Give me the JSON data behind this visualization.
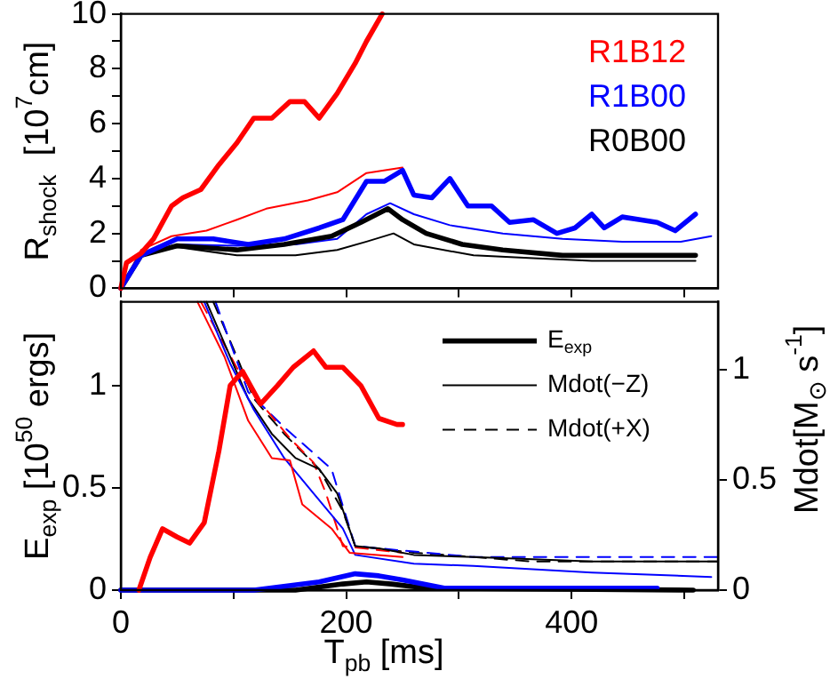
{
  "chart_data": [
    {
      "type": "line",
      "ylabel": "R$_{shock}$  [10$^{7}$cm]",
      "xlim": [
        0,
        530
      ],
      "ylim": [
        0,
        10
      ],
      "tick_labels": "y",
      "legend": "top right",
      "grid": false,
      "xticks": [
        0,
        {
          "value": 100,
          "label": null
        },
        {
          "value": 200,
          "label": null
        },
        {
          "value": 300,
          "label": null
        },
        {
          "value": 400,
          "label": null
        },
        {
          "value": 500,
          "label": null
        }
      ],
      "yticks": [
        0,
        {
          "value": 1,
          "label": null
        },
        2,
        {
          "value": 3,
          "label": null
        },
        4,
        {
          "value": 5,
          "label": null
        },
        6,
        {
          "value": 7,
          "label": null
        },
        8,
        {
          "value": 9,
          "label": null
        },
        10
      ],
      "series": [
        {
          "name": "R1B12",
          "color": "#ff0000",
          "x": [
            0,
            5,
            18,
            29,
            45,
            55,
            71,
            87,
            103,
            118,
            134,
            150,
            163,
            176,
            192,
            208,
            218,
            232
          ],
          "values": [
            0,
            0.93,
            1.28,
            1.8,
            3.0,
            3.3,
            3.6,
            4.5,
            5.3,
            6.2,
            6.2,
            6.8,
            6.8,
            6.2,
            7.1,
            8.2,
            9.0,
            10.0
          ]
        },
        {
          "name": "R1B00",
          "color": "#0000ff",
          "x": [
            0,
            18,
            50,
            82,
            113,
            145,
            176,
            197,
            218,
            234,
            250,
            260,
            276,
            292,
            308,
            329,
            345,
            366,
            387,
            403,
            418,
            429,
            445,
            461,
            476,
            492,
            510
          ],
          "values": [
            0,
            1.2,
            1.8,
            1.8,
            1.6,
            1.8,
            2.2,
            2.5,
            3.9,
            3.9,
            4.3,
            3.4,
            3.3,
            4.0,
            3.0,
            3.0,
            2.4,
            2.5,
            2.0,
            2.2,
            2.7,
            2.2,
            2.6,
            2.5,
            2.4,
            2.1,
            2.7
          ]
        },
        {
          "name": "R0B00",
          "color": "#000000",
          "x": [
            0,
            18,
            50,
            103,
            145,
            187,
            213,
            237,
            250,
            271,
            303,
            339,
            392,
            445,
            510
          ],
          "values": [
            0,
            1.2,
            1.55,
            1.4,
            1.6,
            1.9,
            2.4,
            2.9,
            2.5,
            2.0,
            1.6,
            1.4,
            1.2,
            1.2,
            1.2
          ]
        },
        {
          "color": "#ff0000",
          "x": [
            0,
            18,
            45,
            76,
            103,
            129,
            166,
            192,
            218,
            250
          ],
          "values": [
            0,
            1.4,
            1.9,
            2.1,
            2.5,
            2.9,
            3.2,
            3.5,
            4.2,
            4.4
          ]
        },
        {
          "color": "#0000ff",
          "x": [
            0,
            18,
            50,
            103,
            155,
            192,
            218,
            239,
            260,
            292,
            339,
            392,
            445,
            497,
            524
          ],
          "values": [
            0,
            1.2,
            1.6,
            1.55,
            1.6,
            1.8,
            2.7,
            3.1,
            2.7,
            2.3,
            2.0,
            1.8,
            1.7,
            1.7,
            1.9
          ]
        },
        {
          "color": "#000000",
          "x": [
            0,
            18,
            50,
            103,
            155,
            192,
            218,
            242,
            260,
            313,
            366,
            418,
            510
          ],
          "values": [
            0,
            1.2,
            1.5,
            1.2,
            1.2,
            1.4,
            1.7,
            2.0,
            1.6,
            1.2,
            1.1,
            1.0,
            1.0
          ]
        }
      ]
    },
    {
      "type": "line",
      "xlabel": "T$_{pb}$ [ms]",
      "ylabel": "E$_{exp}$ [10$^{50}$ ergs]",
      "y2label": "Mdot[M$_{⊙}$ s$^{-1}$]",
      "xlim": [
        0,
        530
      ],
      "ylim": [
        0,
        1.41
      ],
      "y2lim": [
        0,
        1.31
      ],
      "legend": "top right",
      "grid": false,
      "xticks": [
        0,
        {
          "value": 100,
          "label": null
        },
        200,
        {
          "value": 300,
          "label": null
        },
        400,
        {
          "value": 500,
          "label": null
        }
      ],
      "yticks": [
        0,
        0.5,
        1
      ],
      "y2ticks": [
        0,
        0.5,
        1
      ],
      "series": [
        {
          "color": "#ff0000",
          "line_style": "solid",
          "x": [
            16,
            26,
            37,
            50,
            61,
            74,
            87,
            97,
            108,
            124,
            139,
            153,
            171,
            182,
            197,
            213,
            229,
            245,
            250
          ],
          "values": [
            0,
            0.16,
            0.3,
            0.26,
            0.23,
            0.33,
            0.68,
            1.0,
            1.07,
            0.91,
            1.0,
            1.09,
            1.17,
            1.09,
            1.09,
            1.0,
            0.84,
            0.81,
            0.81
          ]
        },
        {
          "color": "#0000ff",
          "line_style": "solid",
          "x": [
            0,
            118,
            176,
            208,
            229,
            250,
            287,
            418,
            476
          ],
          "values": [
            0,
            0,
            0.04,
            0.08,
            0.07,
            0.05,
            0.01,
            0.01,
            0.01
          ]
        },
        {
          "name": "E$_{exp}$",
          "color": "#000000",
          "line_style": "solid",
          "x": [
            0,
            155,
            197,
            218,
            240,
            271,
            508
          ],
          "values": [
            0,
            0,
            0.03,
            0.04,
            0.03,
            0.01,
            0
          ]
        },
        {
          "color": "#ff0000",
          "axis": "y2",
          "line_style": "solid",
          "x": [
            68,
            92,
            113,
            134,
            150,
            161,
            187,
            203,
            250
          ],
          "values": [
            1.31,
            1.06,
            0.77,
            0.6,
            0.59,
            0.39,
            0.28,
            0.17,
            0.15
          ]
        },
        {
          "color": "#0000ff",
          "axis": "y2",
          "line_style": "solid",
          "x": [
            74,
            97,
            118,
            145,
            171,
            197,
            208,
            260,
            313,
            418,
            524
          ],
          "values": [
            1.31,
            1.03,
            0.82,
            0.6,
            0.44,
            0.28,
            0.16,
            0.12,
            0.11,
            0.08,
            0.06
          ]
        },
        {
          "name": "Mdot(−Z)",
          "color": "#000000",
          "axis": "y2",
          "line_style": "solid",
          "x": [
            76,
            92,
            113,
            134,
            155,
            176,
            192,
            208,
            229,
            260,
            313,
            418,
            529
          ],
          "values": [
            1.31,
            1.12,
            0.87,
            0.71,
            0.6,
            0.55,
            0.44,
            0.2,
            0.19,
            0.16,
            0.15,
            0.13,
            0.13
          ]
        },
        {
          "color": "#ff0000",
          "axis": "y2",
          "line_style": "dashed",
          "x": [
            71,
            103,
            129,
            150,
            171,
            182,
            197,
            250
          ],
          "values": [
            1.31,
            1.01,
            0.82,
            0.69,
            0.58,
            0.44,
            0.2,
            0.17
          ]
        },
        {
          "color": "#0000ff",
          "axis": "y2",
          "line_style": "dashed",
          "x": [
            84,
            113,
            145,
            187,
            208,
            313,
            529
          ],
          "values": [
            1.31,
            0.9,
            0.74,
            0.55,
            0.2,
            0.15,
            0.15
          ]
        },
        {
          "name": "Mdot(+X)",
          "color": "#000000",
          "axis": "y2",
          "line_style": "dashed",
          "x": [
            82,
            103,
            118,
            145,
            176,
            197,
            208,
            260,
            366,
            529
          ],
          "values": [
            1.31,
            1.06,
            0.87,
            0.71,
            0.55,
            0.36,
            0.2,
            0.17,
            0.13,
            0.13
          ]
        }
      ]
    }
  ]
}
